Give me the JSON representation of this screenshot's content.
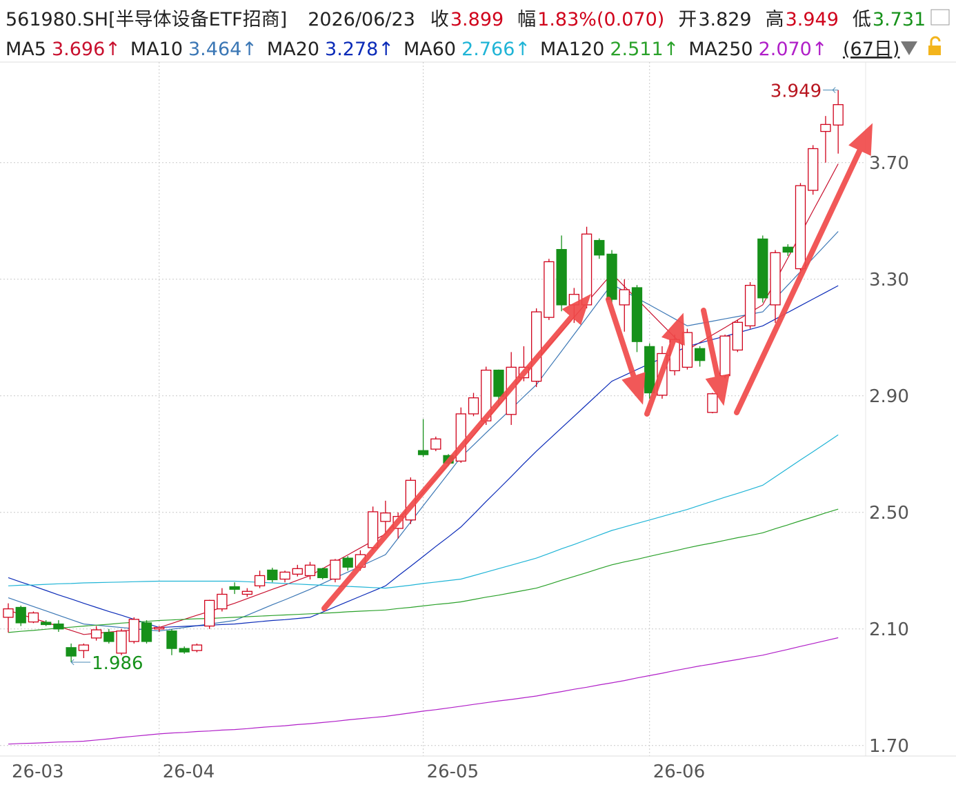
{
  "header": {
    "symbol": "561980.SH[半导体设备ETF招商]",
    "date": "2026/06/23",
    "items": [
      {
        "label": "收",
        "value": "3.899",
        "color": "#d0021b"
      },
      {
        "label": "幅",
        "value": "1.83%(0.070)",
        "color": "#d0021b"
      },
      {
        "label": "开",
        "value": "3.829",
        "color": "#222222"
      },
      {
        "label": "高",
        "value": "3.949",
        "color": "#d0021b"
      },
      {
        "label": "低",
        "value": "3.731",
        "color": "#16911a"
      }
    ],
    "period": "(67日)"
  },
  "chart_data": {
    "type": "candlestick",
    "categories": [
      "26-03",
      null,
      null,
      null,
      null,
      null,
      null,
      null,
      null,
      null,
      null,
      null,
      "26-04",
      null,
      null,
      null,
      null,
      null,
      null,
      null,
      null,
      null,
      null,
      null,
      null,
      null,
      null,
      null,
      null,
      null,
      null,
      null,
      null,
      "26-05",
      null,
      null,
      null,
      null,
      null,
      null,
      null,
      null,
      null,
      null,
      null,
      null,
      null,
      null,
      null,
      null,
      null,
      "26-06",
      null,
      null,
      null,
      null,
      null,
      null,
      null,
      null,
      null,
      null,
      null,
      null,
      null,
      null,
      null
    ],
    "open": [
      2.14,
      2.174,
      2.124,
      2.123,
      2.117,
      2.036,
      2.026,
      2.069,
      2.088,
      2.017,
      2.057,
      2.121,
      2.1,
      2.093,
      2.033,
      2.026,
      2.11,
      2.169,
      2.245,
      2.219,
      2.248,
      2.302,
      2.271,
      2.288,
      2.283,
      2.307,
      2.271,
      2.343,
      2.312,
      2.379,
      2.469,
      2.445,
      2.474,
      2.712,
      2.717,
      2.695,
      2.676,
      2.838,
      2.814,
      2.988,
      2.836,
      2.962,
      2.95,
      3.169,
      3.402,
      3.212,
      3.212,
      3.433,
      3.386,
      3.212,
      3.271,
      3.069,
      2.902,
      2.986,
      2.998,
      3.062,
      2.843,
      2.969,
      3.057,
      3.14,
      3.438,
      3.212,
      3.41,
      3.336,
      3.605,
      3.807,
      3.829
    ],
    "high": [
      2.188,
      2.18,
      2.16,
      2.13,
      2.13,
      2.05,
      2.05,
      2.11,
      2.1,
      2.1,
      2.14,
      2.13,
      2.11,
      2.1,
      2.04,
      2.05,
      2.2,
      2.24,
      2.26,
      2.24,
      2.3,
      2.31,
      2.3,
      2.32,
      2.33,
      2.31,
      2.34,
      2.35,
      2.37,
      2.52,
      2.54,
      2.5,
      2.62,
      2.82,
      2.76,
      2.7,
      2.86,
      2.91,
      3.0,
      2.99,
      3.05,
      3.07,
      3.2,
      3.37,
      3.45,
      3.27,
      3.48,
      3.44,
      3.4,
      3.3,
      3.28,
      3.08,
      3.07,
      3.11,
      3.13,
      3.07,
      2.91,
      3.11,
      3.16,
      3.29,
      3.45,
      3.4,
      3.42,
      3.63,
      3.76,
      3.86,
      3.949
    ],
    "low": [
      2.088,
      2.11,
      2.12,
      2.11,
      2.09,
      1.986,
      2.0,
      2.06,
      2.05,
      2.01,
      2.05,
      2.05,
      2.09,
      2.01,
      2.015,
      2.02,
      2.1,
      2.16,
      2.22,
      2.21,
      2.24,
      2.26,
      2.26,
      2.28,
      2.27,
      2.27,
      2.26,
      2.3,
      2.3,
      2.37,
      2.43,
      2.41,
      2.46,
      2.69,
      2.71,
      2.66,
      2.67,
      2.83,
      2.8,
      2.87,
      2.8,
      2.95,
      2.93,
      3.16,
      3.19,
      3.15,
      3.2,
      3.37,
      3.22,
      3.12,
      3.05,
      2.89,
      2.89,
      2.97,
      2.99,
      3.0,
      2.84,
      2.96,
      3.05,
      3.13,
      3.22,
      3.15,
      3.38,
      3.32,
      3.59,
      3.7,
      3.731
    ],
    "close": [
      2.169,
      2.121,
      2.155,
      2.115,
      2.1,
      2.007,
      2.045,
      2.097,
      2.057,
      2.093,
      2.133,
      2.057,
      2.105,
      2.033,
      2.021,
      2.045,
      2.198,
      2.219,
      2.236,
      2.229,
      2.283,
      2.269,
      2.295,
      2.307,
      2.319,
      2.276,
      2.336,
      2.312,
      2.355,
      2.502,
      2.498,
      2.486,
      2.61,
      2.698,
      2.752,
      2.669,
      2.838,
      2.893,
      2.988,
      2.898,
      2.998,
      2.998,
      3.188,
      3.36,
      3.212,
      3.248,
      3.455,
      3.383,
      3.231,
      3.264,
      3.086,
      2.91,
      3.045,
      3.093,
      3.117,
      3.021,
      2.907,
      3.105,
      3.152,
      3.279,
      3.236,
      3.391,
      3.393,
      3.621,
      3.748,
      3.831,
      3.899
    ],
    "up_color": "#d0021b",
    "down_color": "#16911a",
    "series": [
      {
        "name": "MA5",
        "color": "#c8102e",
        "legend_label": "3.696↑",
        "values": [
          2.164,
          2.15,
          2.136,
          2.123,
          2.109,
          2.095,
          2.081,
          2.085,
          2.089,
          2.093,
          2.097,
          2.101,
          2.105,
          2.119,
          2.133,
          2.147,
          2.16,
          2.174,
          2.188,
          2.204,
          2.22,
          2.236,
          2.251,
          2.267,
          2.283,
          2.307,
          2.331,
          2.354,
          2.378,
          2.402,
          2.426,
          2.474,
          2.521,
          2.569,
          2.617,
          2.664,
          2.712,
          2.764,
          2.815,
          2.867,
          2.918,
          2.97,
          3.021,
          3.071,
          3.12,
          3.17,
          3.22,
          3.269,
          3.319,
          3.275,
          3.232,
          3.188,
          3.144,
          3.101,
          3.057,
          3.083,
          3.109,
          3.134,
          3.16,
          3.186,
          3.212,
          3.293,
          3.373,
          3.454,
          3.535,
          3.615,
          3.696
        ]
      },
      {
        "name": "MA10",
        "color": "#3b77b5",
        "legend_label": "3.464↑",
        "values": [
          2.207,
          2.192,
          2.177,
          2.162,
          2.147,
          2.132,
          2.117,
          2.113,
          2.109,
          2.105,
          2.101,
          2.097,
          2.093,
          2.099,
          2.105,
          2.111,
          2.117,
          2.123,
          2.129,
          2.147,
          2.165,
          2.183,
          2.2,
          2.218,
          2.236,
          2.256,
          2.276,
          2.295,
          2.315,
          2.335,
          2.355,
          2.411,
          2.467,
          2.523,
          2.578,
          2.634,
          2.69,
          2.731,
          2.773,
          2.814,
          2.855,
          2.897,
          2.938,
          2.996,
          3.053,
          3.111,
          3.168,
          3.226,
          3.283,
          3.259,
          3.235,
          3.212,
          3.188,
          3.164,
          3.14,
          3.148,
          3.156,
          3.164,
          3.172,
          3.18,
          3.188,
          3.234,
          3.28,
          3.326,
          3.372,
          3.418,
          3.464
        ]
      },
      {
        "name": "MA20",
        "color": "#0b2bb8",
        "legend_label": "3.278↑",
        "values": [
          2.276,
          2.261,
          2.247,
          2.232,
          2.217,
          2.203,
          2.188,
          2.174,
          2.16,
          2.147,
          2.133,
          2.119,
          2.105,
          2.107,
          2.109,
          2.111,
          2.113,
          2.115,
          2.117,
          2.121,
          2.125,
          2.129,
          2.132,
          2.136,
          2.14,
          2.158,
          2.176,
          2.194,
          2.212,
          2.23,
          2.248,
          2.282,
          2.315,
          2.349,
          2.383,
          2.416,
          2.45,
          2.493,
          2.537,
          2.58,
          2.623,
          2.667,
          2.71,
          2.75,
          2.79,
          2.83,
          2.87,
          2.91,
          2.95,
          2.97,
          2.99,
          3.01,
          3.029,
          3.049,
          3.069,
          3.081,
          3.093,
          3.104,
          3.116,
          3.128,
          3.14,
          3.163,
          3.186,
          3.209,
          3.232,
          3.255,
          3.278
        ]
      },
      {
        "name": "MA60",
        "color": "#1fb4d6",
        "legend_label": "2.766↑",
        "values": [
          2.248,
          2.25,
          2.251,
          2.253,
          2.255,
          2.256,
          2.258,
          2.259,
          2.26,
          2.261,
          2.262,
          2.263,
          2.264,
          2.264,
          2.264,
          2.264,
          2.264,
          2.264,
          2.264,
          2.262,
          2.26,
          2.258,
          2.256,
          2.254,
          2.252,
          2.25,
          2.248,
          2.246,
          2.244,
          2.242,
          2.24,
          2.245,
          2.25,
          2.256,
          2.261,
          2.266,
          2.271,
          2.283,
          2.295,
          2.307,
          2.319,
          2.331,
          2.343,
          2.359,
          2.375,
          2.39,
          2.406,
          2.422,
          2.438,
          2.45,
          2.462,
          2.474,
          2.486,
          2.498,
          2.51,
          2.524,
          2.538,
          2.552,
          2.565,
          2.579,
          2.593,
          2.622,
          2.651,
          2.68,
          2.708,
          2.737,
          2.766
        ]
      },
      {
        "name": "MA120",
        "color": "#2aa12a",
        "legend_label": "2.511↑",
        "values": [
          2.088,
          2.092,
          2.095,
          2.099,
          2.103,
          2.106,
          2.11,
          2.113,
          2.116,
          2.12,
          2.123,
          2.126,
          2.129,
          2.131,
          2.133,
          2.135,
          2.136,
          2.138,
          2.14,
          2.142,
          2.144,
          2.146,
          2.148,
          2.15,
          2.152,
          2.154,
          2.156,
          2.159,
          2.161,
          2.163,
          2.165,
          2.17,
          2.174,
          2.179,
          2.184,
          2.188,
          2.193,
          2.201,
          2.209,
          2.216,
          2.224,
          2.232,
          2.24,
          2.253,
          2.267,
          2.28,
          2.293,
          2.307,
          2.32,
          2.33,
          2.339,
          2.349,
          2.359,
          2.368,
          2.378,
          2.387,
          2.395,
          2.404,
          2.413,
          2.421,
          2.43,
          2.444,
          2.457,
          2.471,
          2.484,
          2.498,
          2.511
        ]
      },
      {
        "name": "MA250",
        "color": "#b01ec8",
        "legend_label": "2.070↑",
        "values": [
          1.705,
          1.707,
          1.708,
          1.71,
          1.712,
          1.713,
          1.715,
          1.719,
          1.723,
          1.728,
          1.732,
          1.736,
          1.74,
          1.743,
          1.745,
          1.748,
          1.75,
          1.753,
          1.755,
          1.758,
          1.762,
          1.765,
          1.768,
          1.772,
          1.775,
          1.779,
          1.783,
          1.788,
          1.792,
          1.796,
          1.8,
          1.806,
          1.812,
          1.818,
          1.823,
          1.829,
          1.835,
          1.841,
          1.847,
          1.853,
          1.858,
          1.864,
          1.87,
          1.878,
          1.885,
          1.893,
          1.9,
          1.908,
          1.915,
          1.923,
          1.932,
          1.94,
          1.948,
          1.957,
          1.965,
          1.973,
          1.98,
          1.988,
          1.995,
          2.003,
          2.01,
          2.02,
          2.03,
          2.04,
          2.05,
          2.06,
          2.07
        ]
      }
    ],
    "ylim": [
      1.664,
      4.045
    ],
    "yticks": [
      {
        "value": 1.7,
        "label": "1.70"
      },
      {
        "value": 2.1,
        "label": "2.10"
      },
      {
        "value": 2.5,
        "label": "2.50"
      },
      {
        "value": 2.9,
        "label": "2.90"
      },
      {
        "value": 3.3,
        "label": "3.30"
      },
      {
        "value": 3.7,
        "label": "3.70"
      }
    ],
    "grid": true
  }
}
